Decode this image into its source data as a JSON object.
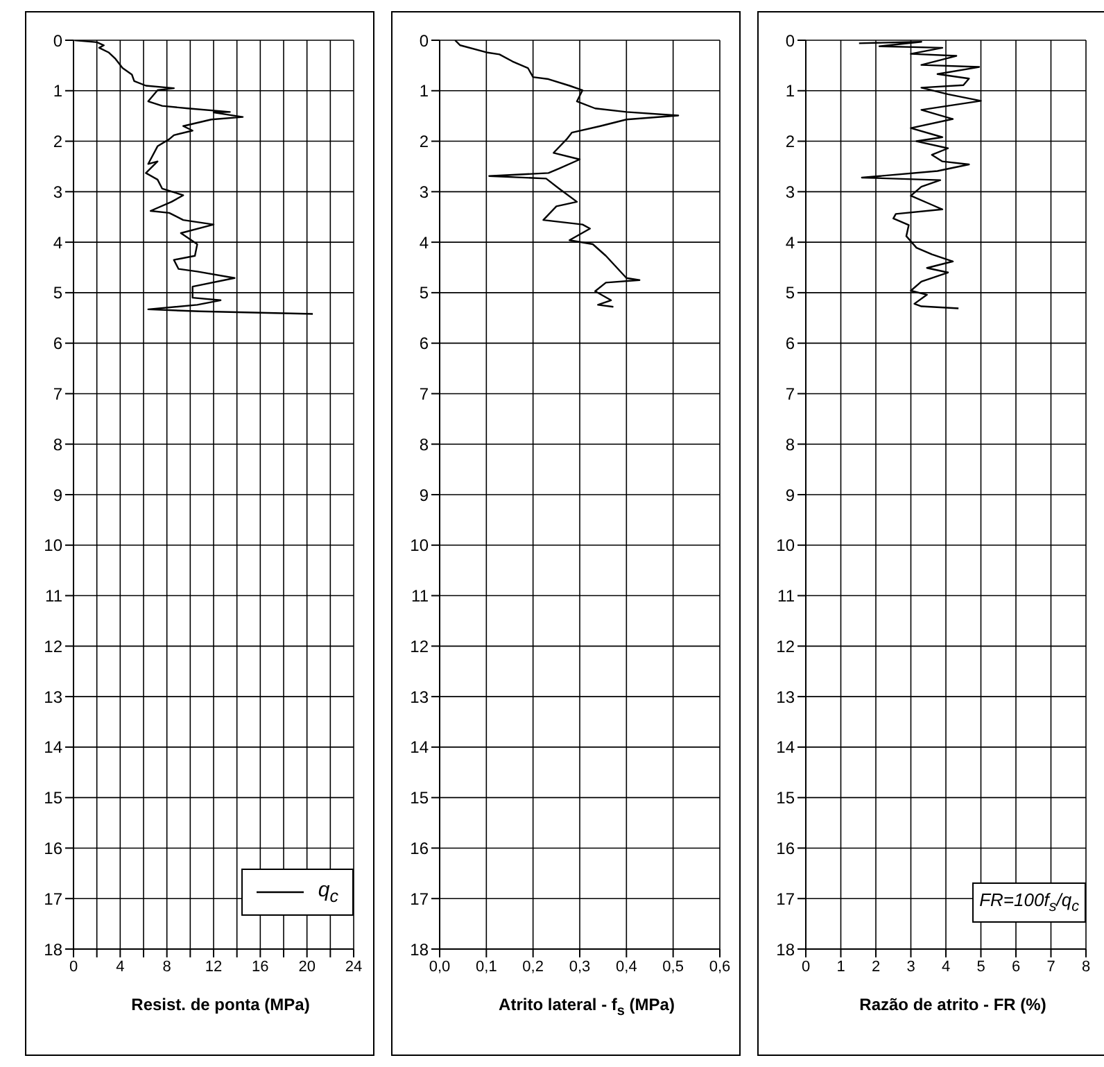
{
  "chart_data": [
    {
      "type": "line",
      "xlabel": "Resist. de ponta (MPa)",
      "xlim": [
        0,
        24
      ],
      "xticks": [
        0,
        {
          "value": 2,
          "label": null
        },
        4,
        {
          "value": 6,
          "label": null
        },
        8,
        {
          "value": 10,
          "label": null
        },
        12,
        {
          "value": 14,
          "label": null
        },
        16,
        {
          "value": 18,
          "label": null
        },
        20,
        {
          "value": 22,
          "label": null
        },
        24
      ],
      "ylim": [
        18,
        0
      ],
      "yticks": [
        0,
        1,
        2,
        3,
        4,
        5,
        6,
        7,
        8,
        9,
        10,
        11,
        12,
        13,
        14,
        15,
        16,
        17,
        18
      ],
      "grid": true,
      "legend": "bottom right",
      "series": [
        {
          "name": "q$_{c}$",
          "color": "#000000",
          "x": [
            0.1,
            2,
            2.6,
            2.2,
            3,
            3.6,
            4.2,
            5,
            5.2,
            6.2,
            8.6,
            7.2,
            6.4,
            7.6,
            9.8,
            13.4,
            12,
            14.5,
            11.8,
            9.4,
            10.2,
            8.6,
            8.2,
            7.2,
            6.4,
            7.2,
            6.2,
            7.2,
            7.6,
            9.4,
            8.4,
            6.6,
            8.2,
            9.4,
            12,
            9.2,
            10.6,
            10.4,
            8.6,
            9,
            10.6,
            13.8,
            10.2,
            10.2,
            12.6,
            10.6,
            6.4,
            10.8,
            20.5
          ],
          "values": [
            0,
            0.04,
            0.1,
            0.15,
            0.24,
            0.37,
            0.55,
            0.68,
            0.81,
            0.9,
            0.95,
            0.99,
            1.21,
            1.3,
            1.35,
            1.42,
            1.43,
            1.52,
            1.57,
            1.7,
            1.79,
            1.88,
            1.96,
            2.1,
            2.45,
            2.4,
            2.63,
            2.76,
            2.94,
            3.07,
            3.2,
            3.38,
            3.42,
            3.56,
            3.65,
            3.82,
            4.04,
            4.27,
            4.35,
            4.53,
            4.58,
            4.71,
            4.88,
            5.1,
            5.15,
            5.24,
            5.33,
            5.37,
            5.42
          ]
        }
      ]
    },
    {
      "type": "line",
      "xlabel": "Atrito lateral - f$_{s}$ (MPa)",
      "xlim": [
        0,
        0.6
      ],
      "xticks": [
        {
          "value": 0,
          "label": "0,0"
        },
        {
          "value": 0.1,
          "label": "0,1"
        },
        {
          "value": 0.2,
          "label": "0,2"
        },
        {
          "value": 0.3,
          "label": "0,3"
        },
        {
          "value": 0.4,
          "label": "0,4"
        },
        {
          "value": 0.5,
          "label": "0,5"
        },
        {
          "value": 0.6,
          "label": "0,6"
        }
      ],
      "ylim": [
        18,
        0
      ],
      "yticks": [
        0,
        1,
        2,
        3,
        4,
        5,
        6,
        7,
        8,
        9,
        10,
        11,
        12,
        13,
        14,
        15,
        16,
        17,
        18
      ],
      "grid": true,
      "series": [
        {
          "color": "#000000",
          "x": [
            0.033,
            0.044,
            0.1,
            0.128,
            0.156,
            0.189,
            0.2,
            0.233,
            0.278,
            0.306,
            0.294,
            0.333,
            0.4,
            0.511,
            0.4,
            0.344,
            0.283,
            0.272,
            0.244,
            0.3,
            0.256,
            0.233,
            0.106,
            0.228,
            0.256,
            0.294,
            0.25,
            0.222,
            0.306,
            0.322,
            0.278,
            0.328,
            0.356,
            0.378,
            0.4,
            0.428,
            0.356,
            0.333,
            0.367,
            0.339,
            0.372
          ],
          "values": [
            0,
            0.1,
            0.24,
            0.28,
            0.42,
            0.55,
            0.73,
            0.77,
            0.9,
            0.99,
            1.21,
            1.35,
            1.42,
            1.49,
            1.57,
            1.7,
            1.83,
            1.96,
            2.23,
            2.36,
            2.54,
            2.63,
            2.69,
            2.74,
            2.94,
            3.2,
            3.29,
            3.56,
            3.65,
            3.73,
            3.96,
            4.04,
            4.27,
            4.49,
            4.71,
            4.75,
            4.8,
            4.97,
            5.15,
            5.24,
            5.28
          ]
        }
      ]
    },
    {
      "type": "line",
      "xlabel": "Razão de atrito - FR (%)",
      "xlim": [
        0,
        8
      ],
      "xticks": [
        0,
        1,
        2,
        3,
        4,
        5,
        6,
        7,
        8
      ],
      "ylim": [
        18,
        0
      ],
      "yticks": [
        0,
        1,
        2,
        3,
        4,
        5,
        6,
        7,
        8,
        9,
        10,
        11,
        12,
        13,
        14,
        15,
        16,
        17,
        18
      ],
      "grid": true,
      "annotations": [
        "FR=100f$_{s}$/q$_{c}$"
      ],
      "series": [
        {
          "color": "#000000",
          "x": [
            1.52,
            3.3,
            2.1,
            3.9,
            3.0,
            4.3,
            3.3,
            4.95,
            3.76,
            4.66,
            4.5,
            3.3,
            4.06,
            5.0,
            3.3,
            4.2,
            3.0,
            3.9,
            3.16,
            4.06,
            3.6,
            3.9,
            4.66,
            3.76,
            1.6,
            3.84,
            3.3,
            3.0,
            3.6,
            3.9,
            2.57,
            2.5,
            2.94,
            2.87,
            3.16,
            3.6,
            4.2,
            3.46,
            4.06,
            3.3,
            3.0,
            3.46,
            3.1,
            3.3,
            4.36
          ],
          "values": [
            0.06,
            0.03,
            0.12,
            0.15,
            0.27,
            0.31,
            0.49,
            0.53,
            0.67,
            0.76,
            0.89,
            0.94,
            1.07,
            1.2,
            1.38,
            1.56,
            1.74,
            1.92,
            2.0,
            2.14,
            2.27,
            2.4,
            2.46,
            2.59,
            2.72,
            2.77,
            2.9,
            3.08,
            3.26,
            3.35,
            3.44,
            3.53,
            3.66,
            3.88,
            4.11,
            4.24,
            4.38,
            4.51,
            4.6,
            4.78,
            4.96,
            5.04,
            5.22,
            5.27,
            5.31
          ]
        }
      ]
    }
  ]
}
